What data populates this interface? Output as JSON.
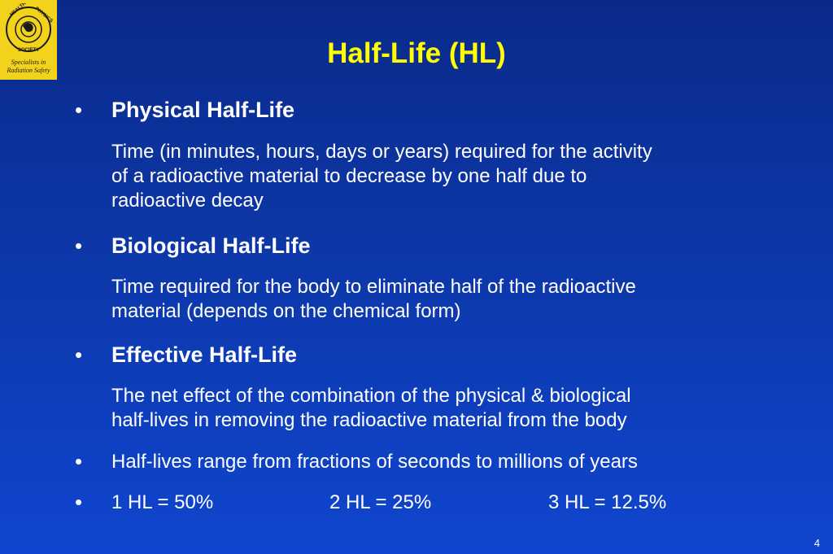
{
  "logo": {
    "ring_top": "HEALTH",
    "ring_right": "PHYSICS",
    "ring_bottom": "SOCIETY",
    "tagline_line1": "Specialists in",
    "tagline_line2": "Radiation Safety",
    "color": "#f3d21c"
  },
  "slide": {
    "title": "Half-Life (HL)",
    "bullet_glyph": "•",
    "items": [
      {
        "heading": "Physical Half-Life",
        "desc_line1": "Time (in minutes, hours, days or years) required for the activity",
        "desc_line2": "of a radioactive material to decrease by one half due to",
        "desc_line3": "radioactive decay"
      },
      {
        "heading": "Biological Half-Life",
        "desc_line1": "Time required for the body to eliminate half of the radioactive",
        "desc_line2": "material (depends on the chemical form)"
      },
      {
        "heading": "Effective Half-Life",
        "desc_line1": "The net effect of the combination of the physical & biological",
        "desc_line2": "half-lives in removing the radioactive material from the body"
      }
    ],
    "range_text": "Half-lives range from fractions of seconds to millions of years",
    "hl_values": [
      "1 HL = 50%",
      "2 HL = 25%",
      "3 HL = 12.5%"
    ],
    "page_number": "4",
    "title_color": "#ffff00"
  }
}
